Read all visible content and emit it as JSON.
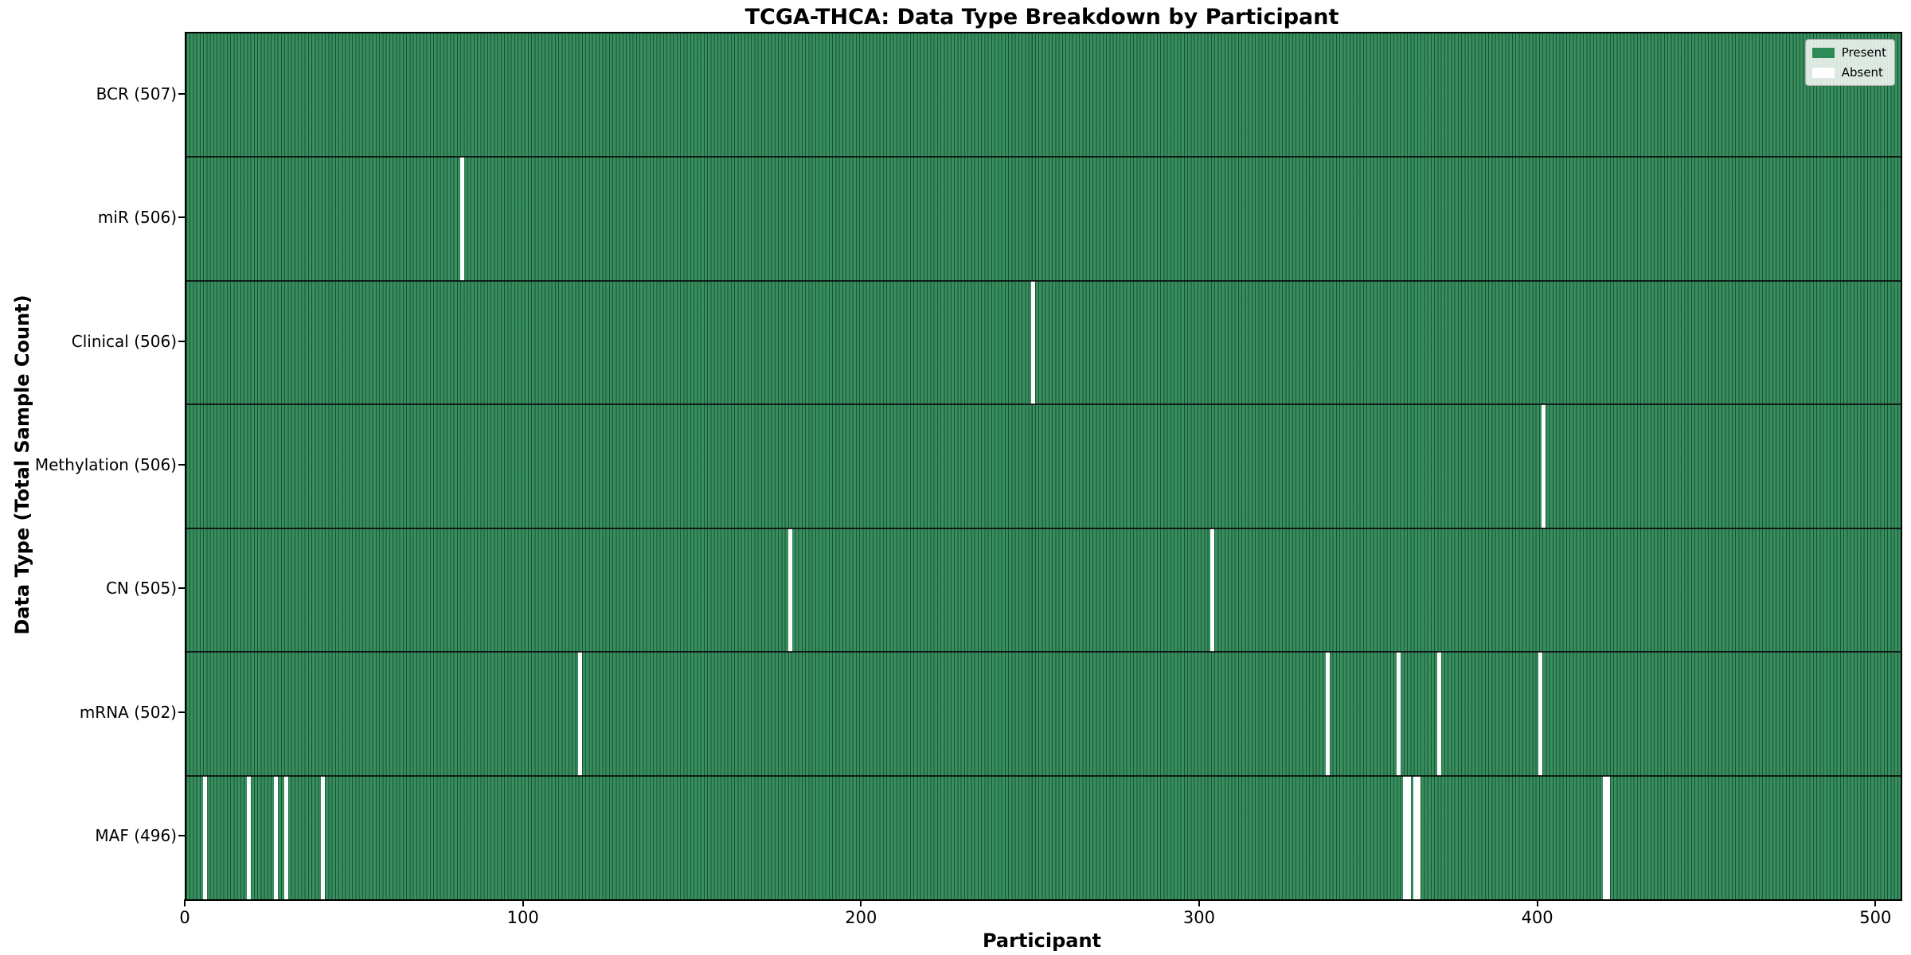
{
  "chart_data": {
    "type": "heatmap",
    "title": "TCGA-THCA: Data Type Breakdown by Participant",
    "xlabel": "Participant",
    "ylabel": "Data Type (Total Sample Count)",
    "x_ticks": [
      0,
      100,
      200,
      300,
      400,
      500
    ],
    "xlim": [
      0,
      507
    ],
    "n_participants": 507,
    "legend": {
      "position": "upper right",
      "present_label": "Present",
      "absent_label": "Absent"
    },
    "colors": {
      "present": "#2e8b57",
      "absent": "#ffffff",
      "bar_edge": "#0a2316",
      "row_separator": "#111111"
    },
    "rows": [
      {
        "name": "BCR",
        "total": 507,
        "label": "BCR (507)",
        "absent_participants": []
      },
      {
        "name": "miR",
        "total": 506,
        "label": "miR (506)",
        "absent_participants": [
          81
        ]
      },
      {
        "name": "Clinical",
        "total": 506,
        "label": "Clinical (506)",
        "absent_participants": [
          250
        ]
      },
      {
        "name": "Methylation",
        "total": 506,
        "label": "Methylation (506)",
        "absent_participants": [
          401
        ]
      },
      {
        "name": "CN",
        "total": 505,
        "label": "CN (505)",
        "absent_participants": [
          178,
          303
        ]
      },
      {
        "name": "mRNA",
        "total": 502,
        "label": "mRNA (502)",
        "absent_participants": [
          116,
          337,
          358,
          370,
          400
        ]
      },
      {
        "name": "MAF",
        "total": 496,
        "label": "MAF (496)",
        "absent_participants": [
          5,
          18,
          26,
          29,
          40,
          360,
          361,
          363,
          364,
          419,
          420
        ]
      }
    ]
  }
}
